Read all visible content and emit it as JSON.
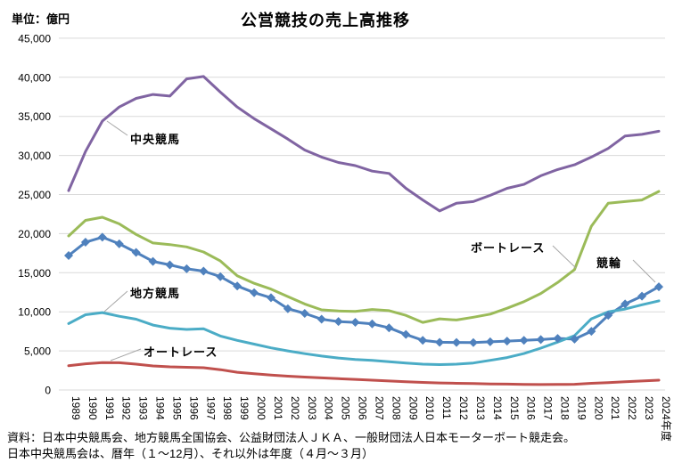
{
  "header": {
    "title": "公営競技の売上高推移",
    "unit_label": "単位：億円"
  },
  "footnotes": {
    "line1": "資料：日本中央競馬会、地方競馬全国協会、公益財団法人ＪＫＡ、一般財団法人日本モーターボート競走会。",
    "line2": "日本中央競馬会は、暦年（１～12月）、それ以外は年度（４月～３月）"
  },
  "chart_data": {
    "type": "line",
    "title": "公営競技の売上高推移",
    "ylabel": "単位：億円",
    "ylim": [
      0,
      45000
    ],
    "ytick_step": 5000,
    "ytick_labels": [
      "0",
      "5,000",
      "10,000",
      "15,000",
      "20,000",
      "25,000",
      "30,000",
      "35,000",
      "40,000",
      "45,000"
    ],
    "grid": "horizontal",
    "grid_color": "#D9D9D9",
    "callout_color": "#A6A6A6",
    "legend": "inline-callouts",
    "categories": [
      "1989",
      "1990",
      "1991",
      "1992",
      "1993",
      "1994",
      "1995",
      "1996",
      "1997",
      "1998",
      "1999",
      "2000",
      "2001",
      "2002",
      "2003",
      "2004",
      "2005",
      "2006",
      "2007",
      "2008",
      "2009",
      "2010",
      "2011",
      "2012",
      "2013",
      "2014",
      "2015",
      "2016",
      "2017",
      "2018",
      "2019",
      "2020",
      "2021",
      "2022",
      "2023",
      "2024年度"
    ],
    "series": [
      {
        "name": "中央競馬",
        "color": "#8064A2",
        "marker": "none",
        "values": [
          25500,
          30500,
          34400,
          36200,
          37300,
          37800,
          37600,
          39800,
          40100,
          38100,
          36200,
          34700,
          33400,
          32100,
          30700,
          29800,
          29100,
          28700,
          28000,
          27700,
          25800,
          24300,
          22900,
          23900,
          24100,
          24900,
          25800,
          26300,
          27400,
          28200,
          28800,
          29800,
          30900,
          32500,
          32700,
          33100
        ]
      },
      {
        "name": "ボートレース",
        "color": "#9BBB59",
        "marker": "none",
        "values": [
          19700,
          21700,
          22100,
          21250,
          19900,
          18800,
          18600,
          18300,
          17650,
          16500,
          14600,
          13650,
          12900,
          11950,
          11000,
          10250,
          10100,
          10050,
          10300,
          10150,
          9550,
          8650,
          9100,
          8950,
          9300,
          9700,
          10450,
          11300,
          12350,
          13750,
          15400,
          20950,
          23900,
          24100,
          24300,
          25400
        ]
      },
      {
        "name": "競輪",
        "color": "#4F81BD",
        "marker": "diamond",
        "values": [
          17200,
          18900,
          19550,
          18700,
          17600,
          16450,
          16000,
          15500,
          15200,
          14500,
          13300,
          12450,
          11800,
          10400,
          9800,
          9050,
          8750,
          8650,
          8450,
          7950,
          7100,
          6350,
          6100,
          6080,
          6060,
          6160,
          6250,
          6350,
          6450,
          6590,
          6500,
          7500,
          9550,
          11000,
          12000,
          13200
        ]
      },
      {
        "name": "地方競馬",
        "color": "#4BACC6",
        "marker": "none",
        "values": [
          8500,
          9620,
          9900,
          9430,
          9050,
          8300,
          7900,
          7750,
          7820,
          6900,
          6340,
          5870,
          5390,
          5000,
          4650,
          4340,
          4090,
          3910,
          3780,
          3620,
          3450,
          3300,
          3250,
          3300,
          3450,
          3790,
          4150,
          4660,
          5350,
          6130,
          6950,
          9100,
          10000,
          10350,
          10900,
          11400
        ]
      },
      {
        "name": "オートレース",
        "color": "#C0504D",
        "marker": "none",
        "values": [
          3100,
          3350,
          3500,
          3480,
          3300,
          3080,
          2960,
          2900,
          2850,
          2600,
          2270,
          2080,
          1900,
          1760,
          1650,
          1550,
          1450,
          1350,
          1250,
          1150,
          1050,
          970,
          900,
          850,
          820,
          780,
          750,
          720,
          700,
          710,
          730,
          850,
          950,
          1050,
          1150,
          1250
        ]
      }
    ],
    "annotations": [
      {
        "text": "中央競馬",
        "callout": [
          120,
          136,
          143,
          152
        ]
      },
      {
        "text": "地方競馬",
        "callout": [
          117,
          350,
          143,
          327
        ]
      },
      {
        "text": "オートレース",
        "callout": [
          124,
          405,
          158,
          392
        ]
      },
      {
        "text": "ボートレース",
        "callout": [
          620,
          276,
          646,
          301
        ]
      },
      {
        "text": "競輪",
        "callout": [
          710,
          292,
          735,
          317
        ]
      }
    ]
  }
}
